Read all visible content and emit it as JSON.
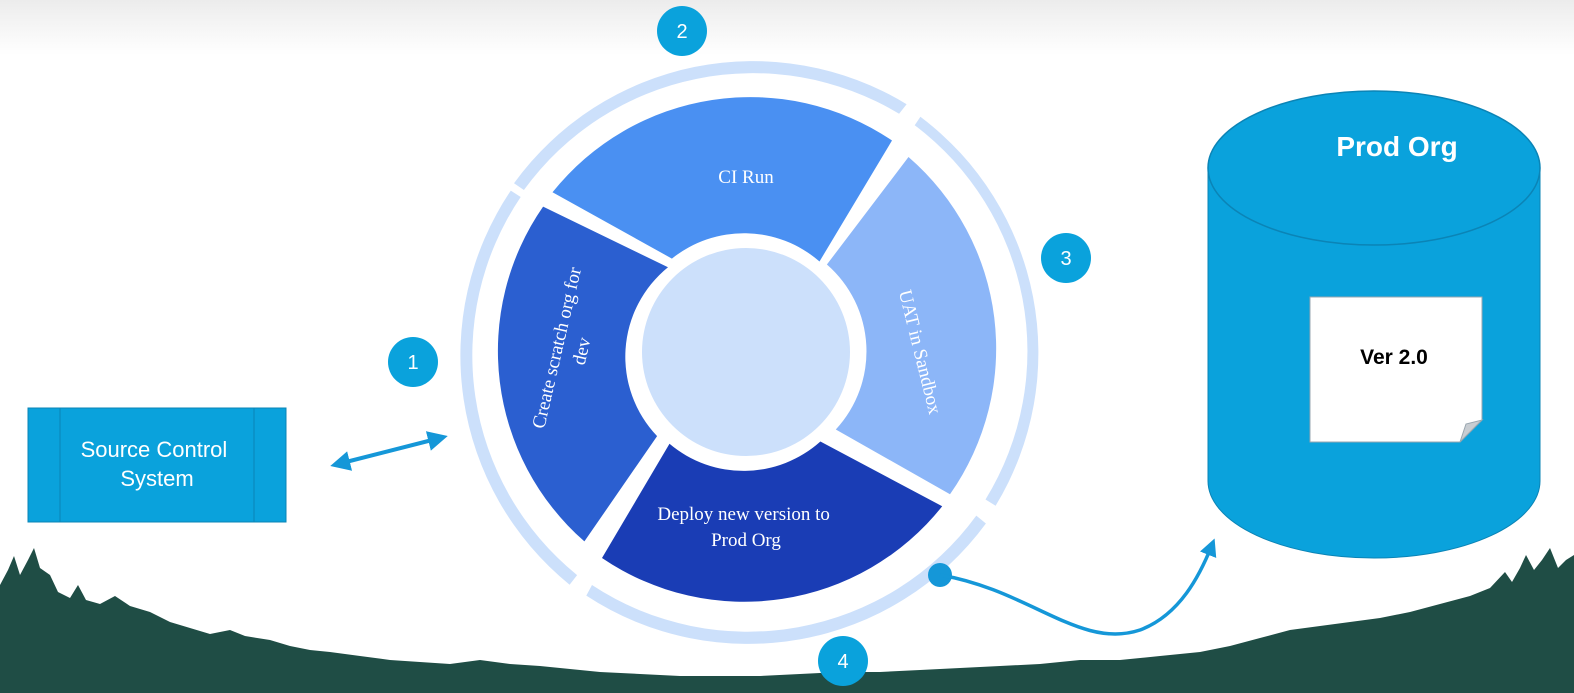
{
  "diagram": {
    "cycle": {
      "steps": [
        {
          "number": "1",
          "label_lines": [
            "Create scratch org for",
            "dev"
          ]
        },
        {
          "number": "2",
          "label_lines": [
            "CI Run"
          ]
        },
        {
          "number": "3",
          "label_lines": [
            "UAT in Sandbox"
          ]
        },
        {
          "number": "4",
          "label_lines": [
            "Deploy new version to",
            "Prod Org"
          ]
        }
      ]
    },
    "source_control": {
      "label_lines": [
        "Source Control",
        "System"
      ]
    },
    "prod_org": {
      "title": "Prod Org",
      "version_label": "Ver 2.0"
    }
  },
  "colors": {
    "step1": "#2b5fd0",
    "step2": "#4a90f2",
    "step3": "#8cb6f8",
    "step4": "#1a3db5",
    "ring_light": "#cce0fb",
    "accent": "#0aa2dc",
    "arrow": "#1597d8",
    "tree": "#1f4d45"
  }
}
